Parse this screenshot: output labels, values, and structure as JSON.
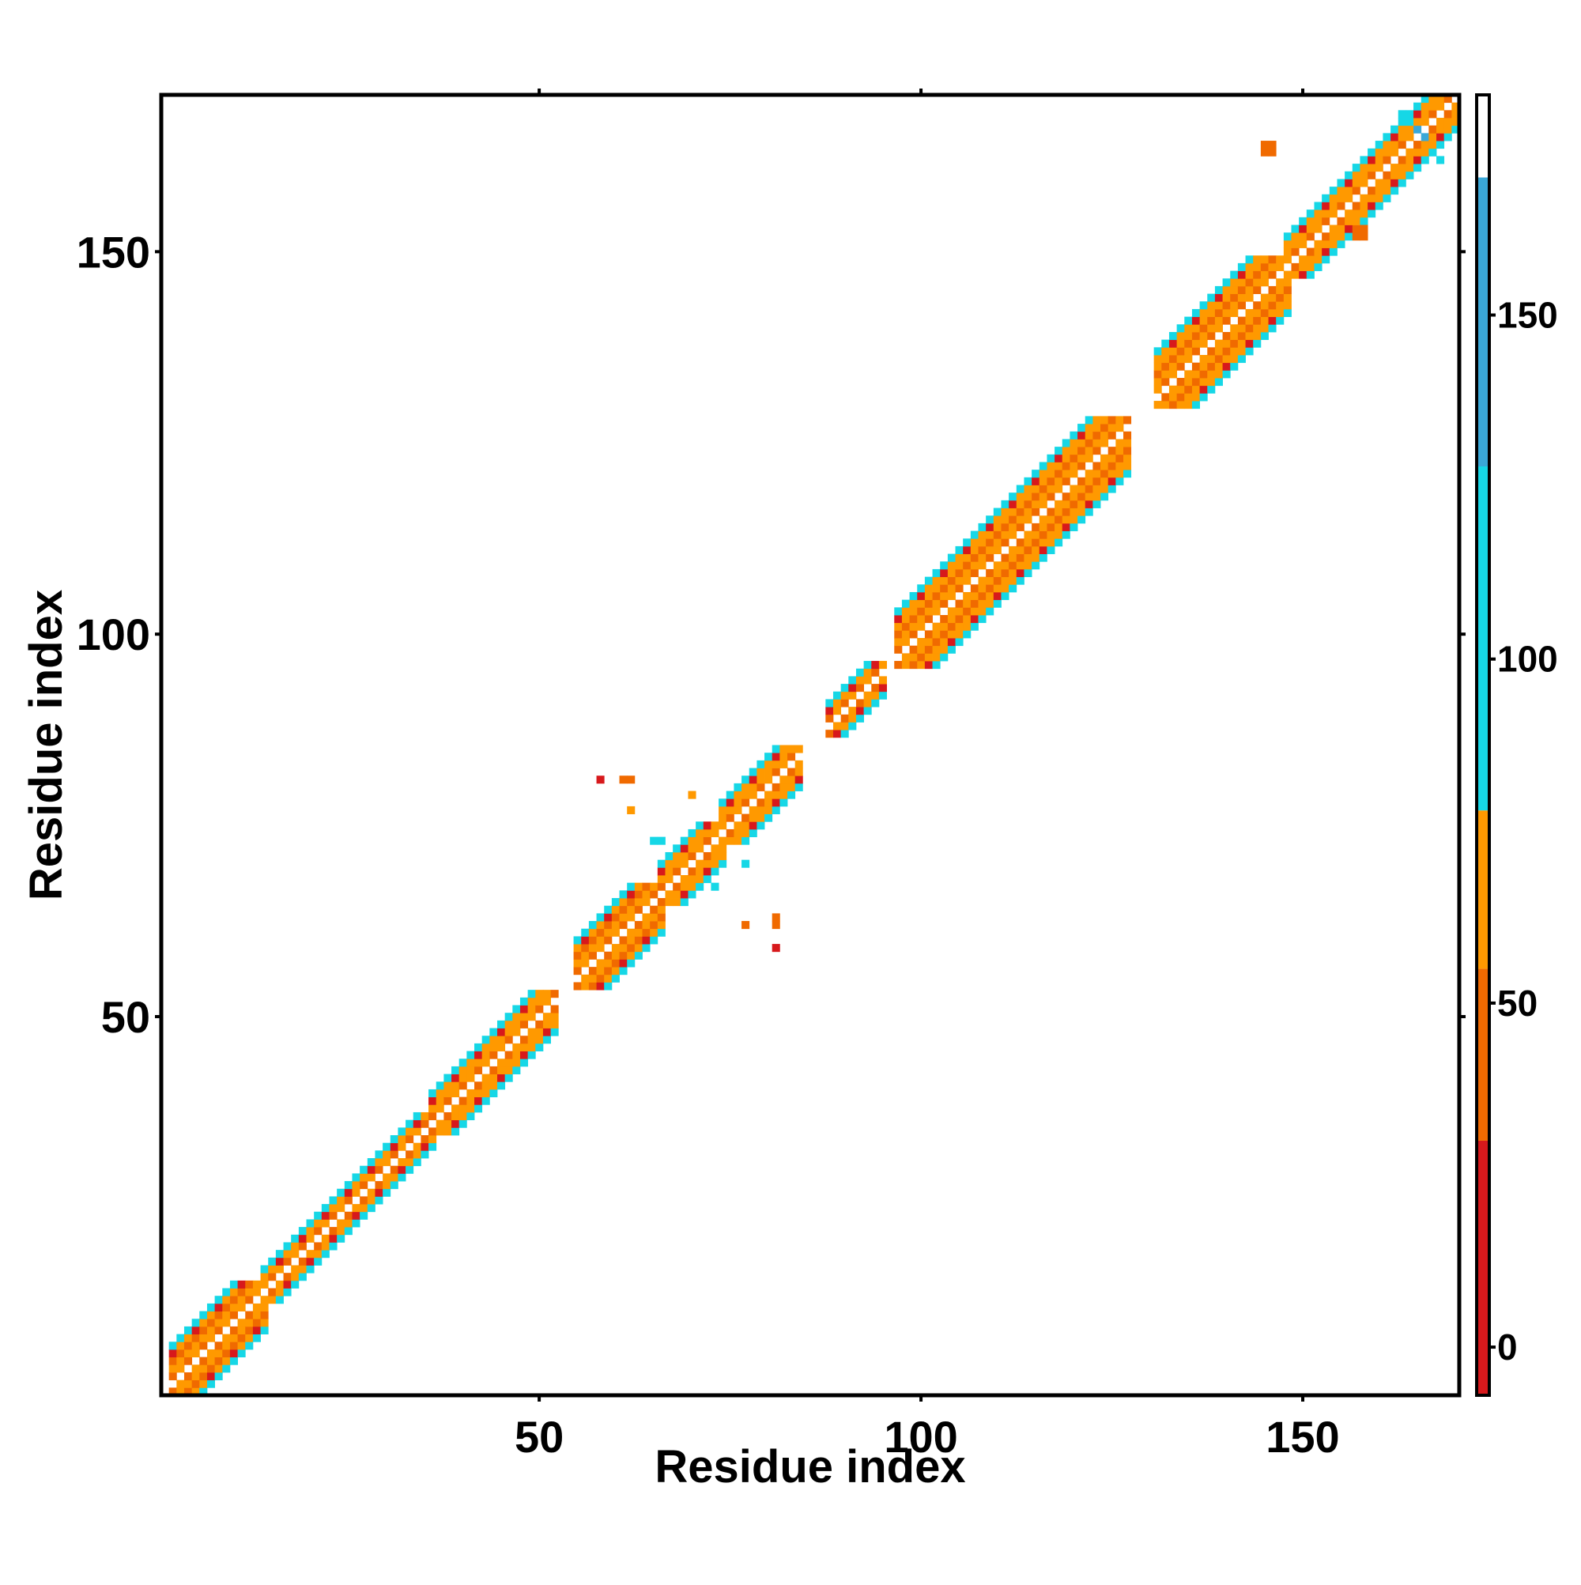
{
  "chart_data": {
    "type": "heatmap",
    "title": "",
    "xlabel": "Residue index",
    "ylabel": "Residue index",
    "xlim": [
      1,
      170
    ],
    "ylim": [
      1,
      170
    ],
    "x_ticks": [
      50,
      100,
      150
    ],
    "y_ticks": [
      50,
      100,
      150
    ],
    "colorbar": {
      "range": [
        -7,
        182
      ],
      "ticks": [
        0,
        50,
        100,
        150
      ],
      "bands": [
        {
          "from": -7,
          "to": 30,
          "color": "#d7191c"
        },
        {
          "from": 30,
          "to": 55,
          "color": "#f06a00"
        },
        {
          "from": 55,
          "to": 78,
          "color": "#ff9900"
        },
        {
          "from": 78,
          "to": 128,
          "color": "#16d7e6"
        },
        {
          "from": 128,
          "to": 170,
          "color": "#3aa8d8"
        },
        {
          "from": 170,
          "to": 182,
          "color": "#ffffff"
        }
      ]
    },
    "pattern": {
      "description_free": true,
      "diagonal_value": 180,
      "inner_band_value": 62,
      "band_segments": [
        {
          "start": 2,
          "end": 14,
          "width": 5
        },
        {
          "start": 14,
          "end": 36,
          "width": 3
        },
        {
          "start": 36,
          "end": 52,
          "width": 4
        },
        {
          "start": 55,
          "end": 66,
          "width": 5
        },
        {
          "start": 66,
          "end": 74,
          "width": 4
        },
        {
          "start": 74,
          "end": 84,
          "width": 4
        },
        {
          "start": 88,
          "end": 95,
          "width": 3
        },
        {
          "start": 97,
          "end": 127,
          "width": 6
        },
        {
          "start": 131,
          "end": 148,
          "width": 6
        },
        {
          "start": 148,
          "end": 170,
          "width": 4
        }
      ],
      "off_diagonal_cells": [
        {
          "x": 58,
          "y": 81,
          "v": 10
        },
        {
          "x": 61,
          "y": 81,
          "v": 50
        },
        {
          "x": 62,
          "y": 81,
          "v": 50
        },
        {
          "x": 62,
          "y": 77,
          "v": 60
        },
        {
          "x": 70,
          "y": 79,
          "v": 65
        },
        {
          "x": 65,
          "y": 73,
          "v": 95
        },
        {
          "x": 66,
          "y": 73,
          "v": 95
        },
        {
          "x": 73,
          "y": 67,
          "v": 95
        },
        {
          "x": 77,
          "y": 70,
          "v": 95
        },
        {
          "x": 77,
          "y": 62,
          "v": 50
        },
        {
          "x": 81,
          "y": 63,
          "v": 50
        },
        {
          "x": 81,
          "y": 62,
          "v": 50
        },
        {
          "x": 81,
          "y": 59,
          "v": 10
        },
        {
          "x": 145,
          "y": 164,
          "v": 50
        },
        {
          "x": 146,
          "y": 164,
          "v": 50
        },
        {
          "x": 145,
          "y": 163,
          "v": 50
        },
        {
          "x": 146,
          "y": 163,
          "v": 50
        },
        {
          "x": 157,
          "y": 153,
          "v": 50
        },
        {
          "x": 158,
          "y": 153,
          "v": 50
        },
        {
          "x": 157,
          "y": 152,
          "v": 50
        },
        {
          "x": 158,
          "y": 152,
          "v": 50
        },
        {
          "x": 164,
          "y": 167,
          "v": 95
        },
        {
          "x": 163,
          "y": 168,
          "v": 95
        },
        {
          "x": 167,
          "y": 163,
          "v": 95
        },
        {
          "x": 168,
          "y": 162,
          "v": 95
        },
        {
          "x": 165,
          "y": 166,
          "v": 150
        },
        {
          "x": 166,
          "y": 165,
          "v": 150
        }
      ]
    },
    "grid": false,
    "legend": "colorbar-right"
  }
}
